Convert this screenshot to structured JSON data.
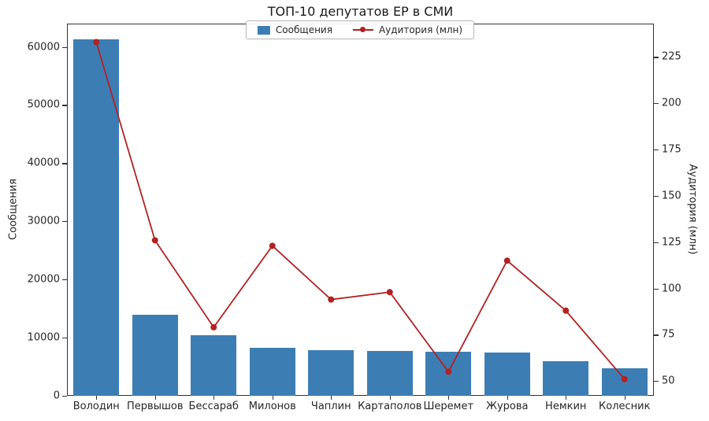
{
  "chart_data": {
    "type": "bar",
    "title": "ТОП-10 депутатов ЕР в СМИ",
    "categories": [
      "Володин",
      "Первышов",
      "Бессараб",
      "Милонов",
      "Чаплин",
      "Картаполов",
      "Шеремет",
      "Журова",
      "Немкин",
      "Колесник"
    ],
    "series": [
      {
        "name": "Сообщения",
        "type": "bar",
        "axis": "left",
        "color": "#3c7eb4",
        "values": [
          61300,
          13900,
          10400,
          8300,
          7800,
          7700,
          7600,
          7500,
          6000,
          4700
        ]
      },
      {
        "name": "Аудитория (млн)",
        "type": "line",
        "axis": "right",
        "color": "#b22222",
        "values": [
          233,
          126,
          79,
          123,
          94,
          98,
          55,
          115,
          88,
          51
        ]
      }
    ],
    "left_axis": {
      "label": "Сообщения",
      "ticks": [
        0,
        10000,
        20000,
        30000,
        40000,
        50000,
        60000
      ],
      "range": [
        0,
        64000
      ]
    },
    "right_axis": {
      "label": "Аудитория (млн)",
      "ticks": [
        50,
        75,
        100,
        125,
        150,
        175,
        200,
        225
      ],
      "range": [
        42,
        243
      ]
    },
    "grid": true,
    "legend_position": "top-center"
  }
}
